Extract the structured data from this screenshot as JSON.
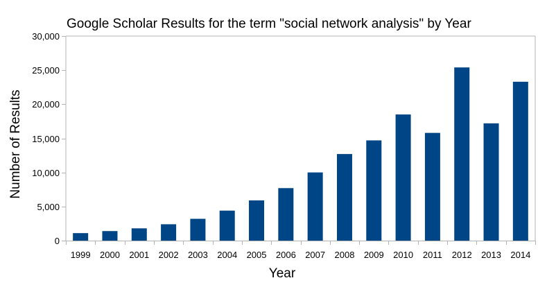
{
  "chart_data": {
    "type": "bar",
    "title": "Google Scholar Results for the term \"social network analysis\" by Year",
    "xlabel": "Year",
    "ylabel": "Number of Results",
    "categories": [
      "1999",
      "2000",
      "2001",
      "2002",
      "2003",
      "2004",
      "2005",
      "2006",
      "2007",
      "2008",
      "2009",
      "2010",
      "2011",
      "2012",
      "2013",
      "2014"
    ],
    "values": [
      1100,
      1400,
      1800,
      2400,
      3200,
      4400,
      5900,
      7700,
      10000,
      12700,
      14700,
      18500,
      15800,
      25400,
      17200,
      23300
    ],
    "ylim": [
      0,
      30000
    ],
    "yticks": [
      0,
      5000,
      10000,
      15000,
      20000,
      25000,
      30000
    ],
    "ytick_labels": [
      "0",
      "5,000",
      "10,000",
      "15,000",
      "20,000",
      "25,000",
      "30,000"
    ],
    "grid": false,
    "legend": "none",
    "colors": {
      "bar": "#004586",
      "axis": "#b3b3b3",
      "text": "#000000"
    }
  }
}
